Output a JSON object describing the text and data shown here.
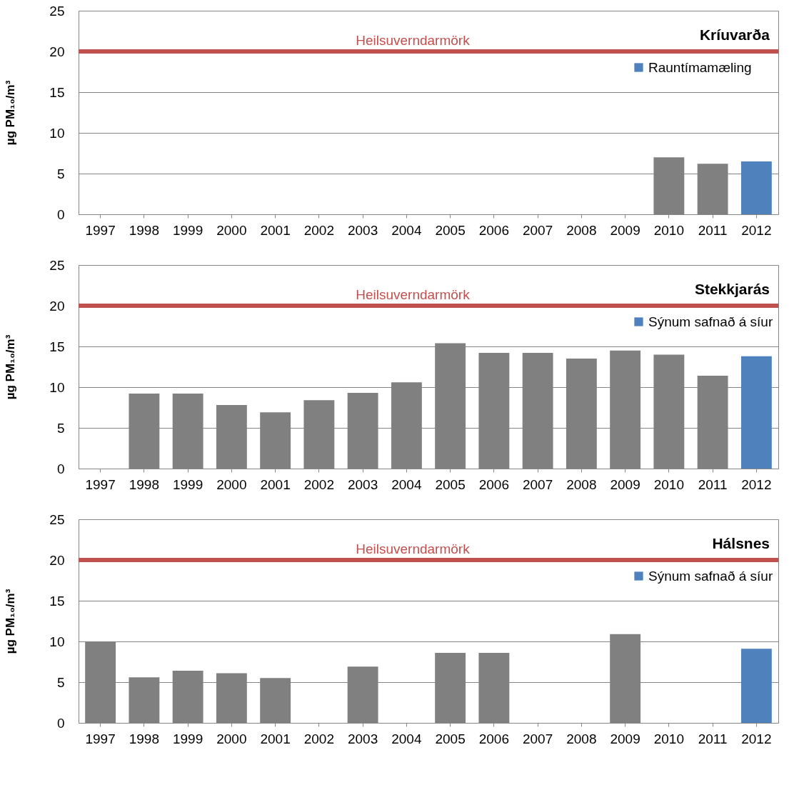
{
  "chart_data": [
    {
      "type": "bar",
      "title": "Kríuvarða",
      "ylabel": "µg PM₁₀/m³",
      "categories": [
        "1997",
        "1998",
        "1999",
        "2000",
        "2001",
        "2002",
        "2003",
        "2004",
        "2005",
        "2006",
        "2007",
        "2008",
        "2009",
        "2010",
        "2011",
        "2012"
      ],
      "series": [
        {
          "color": "#808080",
          "values": [
            null,
            null,
            null,
            null,
            null,
            null,
            null,
            null,
            null,
            null,
            null,
            null,
            null,
            7.0,
            6.2,
            null
          ]
        },
        {
          "name": "Rauntímamæling",
          "color": "#4f81bd",
          "values": [
            null,
            null,
            null,
            null,
            null,
            null,
            null,
            null,
            null,
            null,
            null,
            null,
            null,
            null,
            null,
            6.5
          ]
        }
      ],
      "ylim": [
        0,
        25
      ],
      "yticks": [
        0,
        5,
        10,
        15,
        20,
        25
      ],
      "grid": "y",
      "legend": "top right",
      "ref_lines": [
        {
          "axis": "y",
          "value": 20,
          "label": "Heilsuverndarmörk",
          "color": "#c0504d"
        }
      ]
    },
    {
      "type": "bar",
      "title": "Stekkjarás",
      "ylabel": "µg PM₁₀/m³",
      "categories": [
        "1997",
        "1998",
        "1999",
        "2000",
        "2001",
        "2002",
        "2003",
        "2004",
        "2005",
        "2006",
        "2007",
        "2008",
        "2009",
        "2010",
        "2011",
        "2012"
      ],
      "series": [
        {
          "color": "#808080",
          "values": [
            null,
            9.2,
            9.2,
            7.8,
            6.9,
            8.4,
            9.3,
            10.6,
            15.4,
            14.2,
            14.2,
            13.5,
            14.5,
            14.0,
            11.4,
            null
          ]
        },
        {
          "name": "Sýnum safnað á síur",
          "color": "#4f81bd",
          "values": [
            null,
            null,
            null,
            null,
            null,
            null,
            null,
            null,
            null,
            null,
            null,
            null,
            null,
            null,
            null,
            13.8
          ]
        }
      ],
      "ylim": [
        0,
        25
      ],
      "yticks": [
        0,
        5,
        10,
        15,
        20,
        25
      ],
      "grid": "y",
      "legend": "top right",
      "ref_lines": [
        {
          "axis": "y",
          "value": 20,
          "label": "Heilsuverndarmörk",
          "color": "#c0504d"
        }
      ]
    },
    {
      "type": "bar",
      "title": "Hálsnes",
      "ylabel": "µg PM₁₀/m³",
      "categories": [
        "1997",
        "1998",
        "1999",
        "2000",
        "2001",
        "2002",
        "2003",
        "2004",
        "2005",
        "2006",
        "2007",
        "2008",
        "2009",
        "2010",
        "2011",
        "2012"
      ],
      "series": [
        {
          "color": "#808080",
          "values": [
            10.0,
            5.6,
            6.4,
            6.1,
            5.5,
            null,
            6.9,
            null,
            8.6,
            8.6,
            null,
            null,
            10.9,
            null,
            null,
            null
          ]
        },
        {
          "name": "Sýnum safnað á síur",
          "color": "#4f81bd",
          "values": [
            null,
            null,
            null,
            null,
            null,
            null,
            null,
            null,
            null,
            null,
            null,
            null,
            null,
            null,
            null,
            9.1
          ]
        }
      ],
      "ylim": [
        0,
        25
      ],
      "yticks": [
        0,
        5,
        10,
        15,
        20,
        25
      ],
      "grid": "y",
      "legend": "top right",
      "ref_lines": [
        {
          "axis": "y",
          "value": 20,
          "label": "Heilsuverndarmörk",
          "color": "#c0504d"
        }
      ]
    }
  ]
}
